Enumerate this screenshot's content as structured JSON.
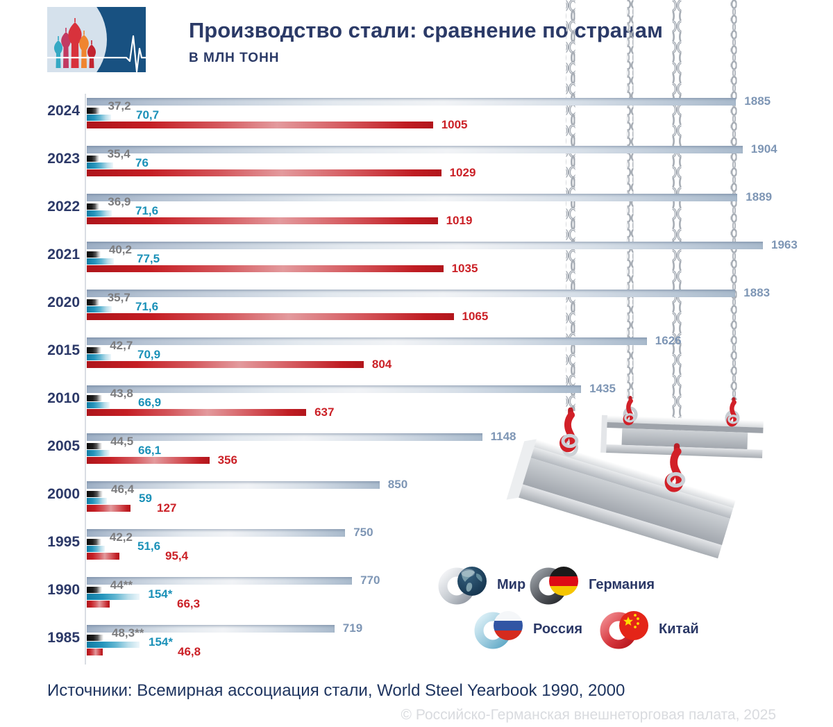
{
  "header": {
    "title": "Производство стали: сравнение по странам",
    "subtitle": "В МЛН ТОНН"
  },
  "chart_data": {
    "type": "bar",
    "orientation": "horizontal",
    "unit": "млн тонн",
    "xmax": 1975,
    "grid": false,
    "legend_position": "bottom-right",
    "series": [
      {
        "id": "world",
        "name": "Мир",
        "color": "#9fb1c6"
      },
      {
        "id": "germany",
        "name": "Германия",
        "color": "#1a1a1a"
      },
      {
        "id": "russia",
        "name": "Россия",
        "color": "#2695bc"
      },
      {
        "id": "china",
        "name": "Китай",
        "color": "#c51e24"
      }
    ],
    "rows": [
      {
        "year": "2024",
        "world": 1885,
        "germany": 37.2,
        "russia": 70.7,
        "china": 1005,
        "labels": {
          "world": "1885",
          "germany": "37,2",
          "russia": "70,7",
          "china": "1005"
        }
      },
      {
        "year": "2023",
        "world": 1904,
        "germany": 35.4,
        "russia": 76,
        "china": 1029,
        "labels": {
          "world": "1904",
          "germany": "35,4",
          "russia": "76",
          "china": "1029"
        }
      },
      {
        "year": "2022",
        "world": 1889,
        "germany": 36.9,
        "russia": 71.6,
        "china": 1019,
        "labels": {
          "world": "1889",
          "germany": "36,9",
          "russia": "71,6",
          "china": "1019"
        }
      },
      {
        "year": "2021",
        "world": 1963,
        "germany": 40.2,
        "russia": 77.5,
        "china": 1035,
        "labels": {
          "world": "1963",
          "germany": "40,2",
          "russia": "77,5",
          "china": "1035"
        }
      },
      {
        "year": "2020",
        "world": 1883,
        "germany": 35.7,
        "russia": 71.6,
        "china": 1065,
        "labels": {
          "world": "1883",
          "germany": "35,7",
          "russia": "71,6",
          "china": "1065"
        }
      },
      {
        "year": "2015",
        "world": 1626,
        "germany": 42.7,
        "russia": 70.9,
        "china": 804,
        "labels": {
          "world": "1626",
          "germany": "42,7",
          "russia": "70,9",
          "china": "804"
        }
      },
      {
        "year": "2010",
        "world": 1435,
        "germany": 43.8,
        "russia": 66.9,
        "china": 637,
        "labels": {
          "world": "1435",
          "germany": "43,8",
          "russia": "66,9",
          "china": "637"
        }
      },
      {
        "year": "2005",
        "world": 1148,
        "germany": 44.5,
        "russia": 66.1,
        "china": 356,
        "labels": {
          "world": "1148",
          "germany": "44,5",
          "russia": "66,1",
          "china": "356"
        }
      },
      {
        "year": "2000",
        "world": 850,
        "germany": 46.4,
        "russia": 59,
        "china": 127,
        "labels": {
          "world": "850",
          "germany": "46,4",
          "russia": "59",
          "china": "127"
        }
      },
      {
        "year": "1995",
        "world": 750,
        "germany": 42.2,
        "russia": 51.6,
        "china": 95.4,
        "labels": {
          "world": "750",
          "germany": "42,2",
          "russia": "51,6",
          "china": "95,4"
        }
      },
      {
        "year": "1990",
        "world": 770,
        "germany": 44,
        "russia": 154,
        "china": 66.3,
        "labels": {
          "world": "770",
          "germany": "44**",
          "russia": "154*",
          "china": "66,3"
        }
      },
      {
        "year": "1985",
        "world": 719,
        "germany": 48.3,
        "russia": 154,
        "china": 46.8,
        "labels": {
          "world": "719",
          "germany": "48,3**",
          "russia": "154*",
          "china": "46,8"
        }
      }
    ]
  },
  "legend": [
    {
      "id": "world",
      "label": "Мир"
    },
    {
      "id": "germany",
      "label": "Германия"
    },
    {
      "id": "russia",
      "label": "Россия"
    },
    {
      "id": "china",
      "label": "Китай"
    }
  ],
  "footer": {
    "sources": "Источники: Всемирная ассоциация стали, World Steel Yearbook 1990, 2000",
    "copyright": "© Российско-Германская внешнеторговая палата, 2025"
  },
  "colors": {
    "title": "#2b3a67",
    "year_label": "#2c3968",
    "world_value": "#7e96b5",
    "germany_value": "#7c7c7e",
    "russia_value": "#1b91b8",
    "china_value": "#cb2127",
    "axis_line": "#d9dde3",
    "source_text": "#1f3560",
    "copyright_text": "#d9dbdf"
  }
}
